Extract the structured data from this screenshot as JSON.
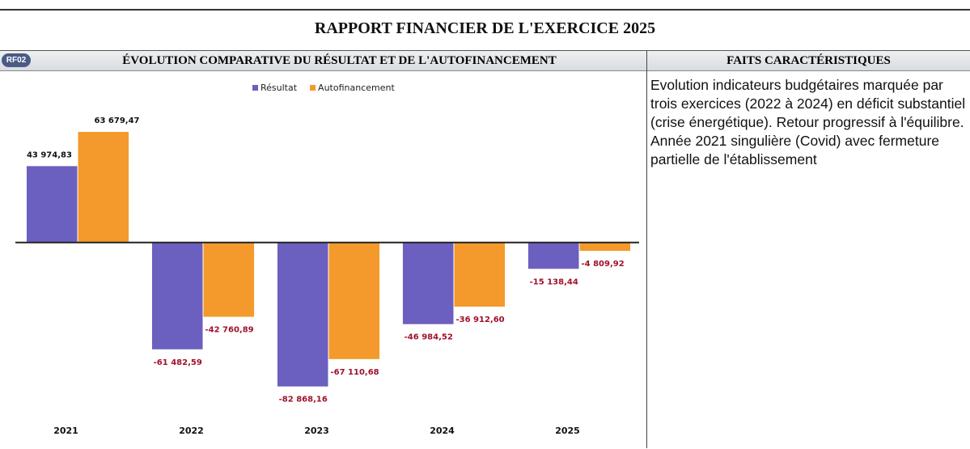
{
  "title": "RAPPORT FINANCIER DE L'EXERCICE 2025",
  "badge": "RF02",
  "chart_header": "ÉVOLUTION COMPARATIVE DU RÉSULTAT ET DE L'AUTOFINANCEMENT",
  "facts_header": "FAITS CARACTÉRISTIQUES",
  "facts": [
    "Evolution indicateurs budgétaires marquée par trois exercices (2022 à 2024) en déficit substantiel (crise énergétique). Retour progressif à l'équilibre.",
    "Année 2021 singulière (Covid) avec fermeture partielle de l'établissement"
  ],
  "chart_data": {
    "type": "bar",
    "categories": [
      "2021",
      "2022",
      "2023",
      "2024",
      "2025"
    ],
    "series": [
      {
        "name": "Résultat",
        "color": "#6b5fbf",
        "values": [
          43974.83,
          -61482.59,
          -82868.16,
          -46984.52,
          -15138.44
        ],
        "value_labels": [
          "43 974,83",
          "-61 482,59",
          "-82 868,16",
          "-46 984,52",
          "-15 138,44"
        ]
      },
      {
        "name": "Autofinancement",
        "color": "#f4992b",
        "values": [
          63679.47,
          -42760.89,
          -67110.68,
          -36912.6,
          -4809.92
        ],
        "value_labels": [
          "63 679,47",
          "-42 760,89",
          "-67 110,68",
          "-36 912,60",
          "-4 809,92"
        ]
      }
    ],
    "ylim": [
      -90000,
      80000
    ],
    "legend": "top"
  }
}
